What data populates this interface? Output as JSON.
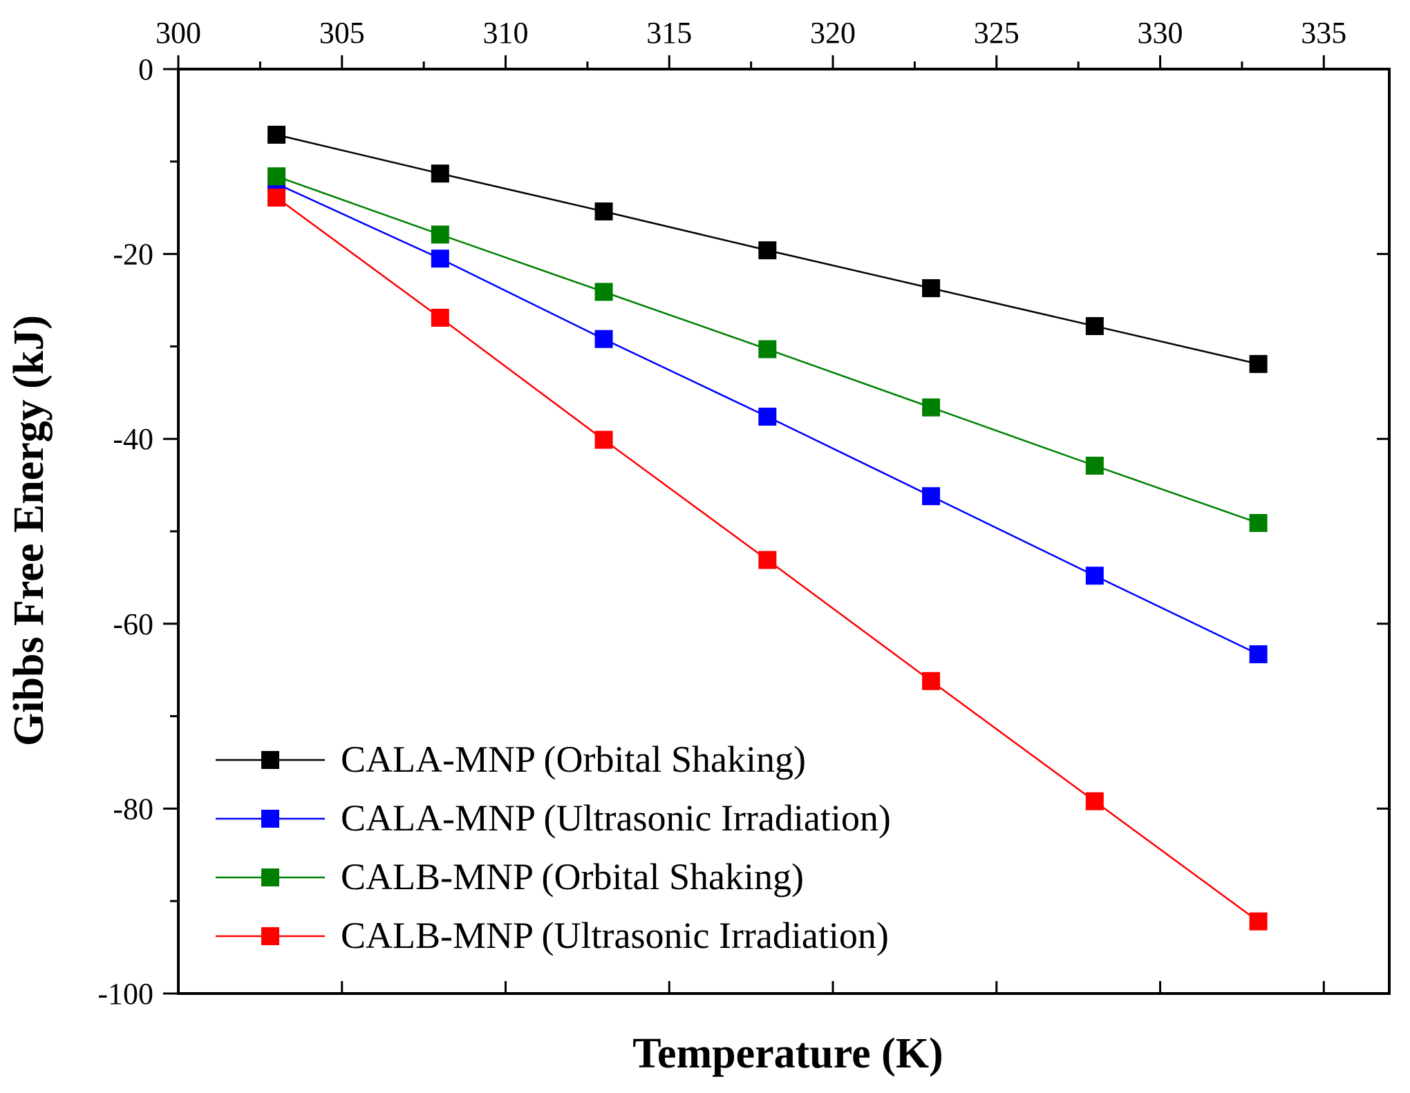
{
  "chart_data": {
    "type": "line",
    "title": "",
    "xlabel": "Temperature (K)",
    "ylabel": "Gibbs Free Energy (kJ)",
    "xlim": [
      300,
      337
    ],
    "ylim": [
      -100,
      0
    ],
    "x_ticks": [
      300,
      305,
      310,
      315,
      320,
      325,
      330,
      335
    ],
    "y_ticks": [
      0,
      -20,
      -40,
      -60,
      -80,
      -100
    ],
    "x_tick_labels": [
      "300",
      "305",
      "310",
      "315",
      "320",
      "325",
      "330",
      "335"
    ],
    "y_tick_labels": [
      "0",
      "-20",
      "-40",
      "-60",
      "-80",
      "-100"
    ],
    "x_axis_position": "top",
    "grid": false,
    "legend_position": "bottom-left",
    "x": [
      303,
      308,
      313,
      318,
      323,
      328,
      333
    ],
    "series": [
      {
        "name": "CALA-MNP (Orbital Shaking)",
        "color": "#000000",
        "marker": "square",
        "values": [
          -7.1,
          -11.3,
          -15.4,
          -19.6,
          -23.7,
          -27.8,
          -31.9
        ]
      },
      {
        "name": "CALA-MNP (Ultrasonic Irradiation)",
        "color": "#0000ff",
        "marker": "square",
        "values": [
          -12.4,
          -20.5,
          -29.2,
          -37.6,
          -46.2,
          -54.8,
          -63.3
        ]
      },
      {
        "name": "CALB-MNP (Orbital Shaking)",
        "color": "#008000",
        "marker": "square",
        "values": [
          -11.6,
          -17.9,
          -24.1,
          -30.3,
          -36.6,
          -42.9,
          -49.1
        ]
      },
      {
        "name": "CALB-MNP (Ultrasonic Irradiation)",
        "color": "#ff0000",
        "marker": "square",
        "values": [
          -13.9,
          -26.9,
          -40.1,
          -53.1,
          -66.2,
          -79.2,
          -92.2
        ]
      }
    ]
  }
}
